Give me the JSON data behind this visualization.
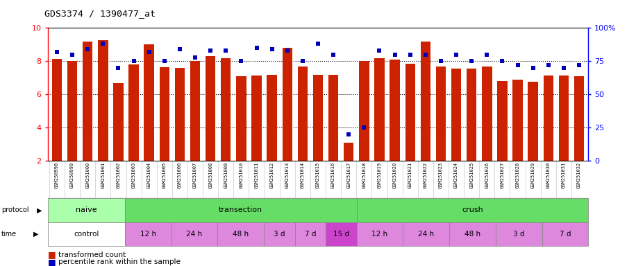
{
  "title": "GDS3374 / 1390477_at",
  "samples": [
    "GSM250998",
    "GSM250999",
    "GSM251000",
    "GSM251001",
    "GSM251002",
    "GSM251003",
    "GSM251004",
    "GSM251005",
    "GSM251006",
    "GSM251007",
    "GSM251008",
    "GSM251009",
    "GSM251010",
    "GSM251011",
    "GSM251012",
    "GSM251013",
    "GSM251014",
    "GSM251015",
    "GSM251016",
    "GSM251017",
    "GSM251018",
    "GSM251019",
    "GSM251020",
    "GSM251021",
    "GSM251022",
    "GSM251023",
    "GSM251024",
    "GSM251025",
    "GSM251026",
    "GSM251027",
    "GSM251028",
    "GSM251029",
    "GSM251030",
    "GSM251031",
    "GSM251032"
  ],
  "transformed_count": [
    8.15,
    8.0,
    9.2,
    9.25,
    6.7,
    7.8,
    9.0,
    7.65,
    7.6,
    8.0,
    8.3,
    8.2,
    7.1,
    7.15,
    7.2,
    8.8,
    7.7,
    7.2,
    7.2,
    3.1,
    8.0,
    8.2,
    8.1,
    7.85,
    9.2,
    7.7,
    7.55,
    7.55,
    7.7,
    6.8,
    6.9,
    6.75,
    7.15,
    7.15,
    7.1
  ],
  "percentile_rank": [
    82,
    80,
    84,
    88,
    70,
    75,
    82,
    75,
    84,
    78,
    83,
    83,
    75,
    85,
    84,
    83,
    75,
    88,
    80,
    20,
    25,
    83,
    80,
    80,
    80,
    75,
    80,
    75,
    80,
    75,
    72,
    70,
    72,
    70,
    72
  ],
  "bar_color": "#cc2200",
  "dot_color": "#0000bb",
  "bg_color": "#ffffff",
  "chart_bg": "#ffffff",
  "label_bg": "#d8d8d8",
  "protocol_groups": [
    {
      "label": "naive",
      "start": 0,
      "end": 4,
      "color": "#aaffaa"
    },
    {
      "label": "transection",
      "start": 5,
      "end": 19,
      "color": "#66dd66"
    },
    {
      "label": "crush",
      "start": 20,
      "end": 34,
      "color": "#66dd66"
    }
  ],
  "time_groups": [
    {
      "label": "control",
      "start": 0,
      "end": 4,
      "color": "#ffffff"
    },
    {
      "label": "12 h",
      "start": 5,
      "end": 7,
      "color": "#dd88dd"
    },
    {
      "label": "24 h",
      "start": 8,
      "end": 10,
      "color": "#dd88dd"
    },
    {
      "label": "48 h",
      "start": 11,
      "end": 13,
      "color": "#dd88dd"
    },
    {
      "label": "3 d",
      "start": 14,
      "end": 15,
      "color": "#dd88dd"
    },
    {
      "label": "7 d",
      "start": 16,
      "end": 17,
      "color": "#dd88dd"
    },
    {
      "label": "15 d",
      "start": 18,
      "end": 19,
      "color": "#cc44cc"
    },
    {
      "label": "12 h",
      "start": 20,
      "end": 22,
      "color": "#dd88dd"
    },
    {
      "label": "24 h",
      "start": 23,
      "end": 25,
      "color": "#dd88dd"
    },
    {
      "label": "48 h",
      "start": 26,
      "end": 28,
      "color": "#dd88dd"
    },
    {
      "label": "3 d",
      "start": 29,
      "end": 31,
      "color": "#dd88dd"
    },
    {
      "label": "7 d",
      "start": 32,
      "end": 34,
      "color": "#dd88dd"
    }
  ],
  "ylim": [
    2,
    10
  ],
  "yticks": [
    2,
    4,
    6,
    8,
    10
  ],
  "pr_ylim": [
    0,
    100
  ],
  "pr_yticks": [
    0,
    25,
    50,
    75,
    100
  ],
  "pr_yticklabels": [
    "0",
    "25",
    "50",
    "75",
    "100%"
  ]
}
